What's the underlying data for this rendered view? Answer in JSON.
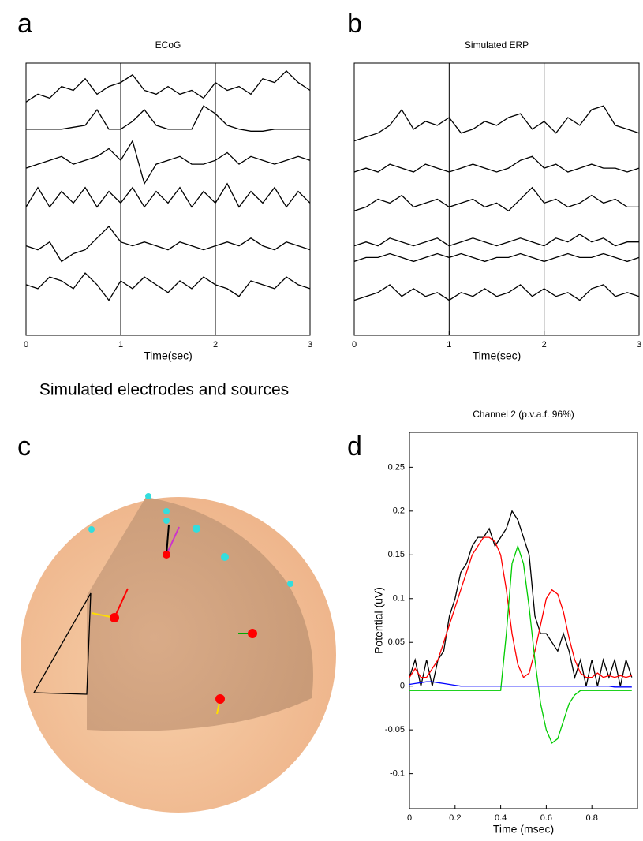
{
  "panel_labels": [
    "a",
    "b",
    "c",
    "d"
  ],
  "heading": "Simulated electrodes and sources",
  "chart_data": [
    {
      "type": "line",
      "title": "ECoG",
      "xlabel": "Time(sec)",
      "x": [
        0,
        0.125,
        0.25,
        0.375,
        0.5,
        0.625,
        0.75,
        0.875,
        1,
        1.125,
        1.25,
        1.375,
        1.5,
        1.625,
        1.75,
        1.875,
        2,
        2.125,
        2.25,
        2.375,
        2.5,
        2.625,
        2.75,
        2.875,
        3
      ],
      "xlim": [
        0,
        3
      ],
      "xticks": [
        0,
        1,
        2,
        3
      ],
      "ylim": [
        0,
        7
      ],
      "grid": true,
      "series": [
        {
          "color": "#000000",
          "values": [
            6.0,
            6.2,
            6.1,
            6.4,
            6.3,
            6.6,
            6.2,
            6.4,
            6.5,
            6.7,
            6.3,
            6.2,
            6.4,
            6.2,
            6.3,
            6.1,
            6.5,
            6.3,
            6.4,
            6.2,
            6.6,
            6.5,
            6.8,
            6.5,
            6.3
          ]
        },
        {
          "color": "#000000",
          "values": [
            5.3,
            5.3,
            5.3,
            5.3,
            5.35,
            5.4,
            5.8,
            5.3,
            5.3,
            5.5,
            5.8,
            5.4,
            5.3,
            5.3,
            5.3,
            5.9,
            5.7,
            5.4,
            5.3,
            5.25,
            5.25,
            5.3,
            5.3,
            5.3,
            5.3
          ]
        },
        {
          "color": "#000000",
          "values": [
            4.3,
            4.4,
            4.5,
            4.6,
            4.4,
            4.5,
            4.6,
            4.8,
            4.5,
            5.0,
            3.9,
            4.4,
            4.5,
            4.6,
            4.4,
            4.4,
            4.5,
            4.7,
            4.4,
            4.6,
            4.5,
            4.4,
            4.5,
            4.6,
            4.5
          ]
        },
        {
          "color": "#000000",
          "values": [
            3.3,
            3.8,
            3.3,
            3.7,
            3.4,
            3.8,
            3.3,
            3.7,
            3.4,
            3.8,
            3.3,
            3.7,
            3.4,
            3.8,
            3.3,
            3.7,
            3.4,
            3.9,
            3.3,
            3.7,
            3.4,
            3.8,
            3.3,
            3.7,
            3.4
          ]
        },
        {
          "color": "#000000",
          "values": [
            2.3,
            2.2,
            2.4,
            1.9,
            2.1,
            2.2,
            2.5,
            2.8,
            2.4,
            2.3,
            2.4,
            2.3,
            2.2,
            2.4,
            2.3,
            2.2,
            2.3,
            2.4,
            2.3,
            2.5,
            2.3,
            2.2,
            2.4,
            2.3,
            2.2
          ]
        },
        {
          "color": "#000000",
          "values": [
            1.3,
            1.2,
            1.5,
            1.4,
            1.2,
            1.6,
            1.3,
            0.9,
            1.4,
            1.2,
            1.5,
            1.3,
            1.1,
            1.4,
            1.2,
            1.5,
            1.3,
            1.2,
            1.0,
            1.4,
            1.3,
            1.2,
            1.5,
            1.3,
            1.2
          ]
        }
      ]
    },
    {
      "type": "line",
      "title": "Simulated ERP",
      "xlabel": "Time(sec)",
      "x": [
        0,
        0.125,
        0.25,
        0.375,
        0.5,
        0.625,
        0.75,
        0.875,
        1,
        1.125,
        1.25,
        1.375,
        1.5,
        1.625,
        1.75,
        1.875,
        2,
        2.125,
        2.25,
        2.375,
        2.5,
        2.625,
        2.75,
        2.875,
        3
      ],
      "xlim": [
        0,
        3
      ],
      "xticks": [
        0,
        1,
        2,
        3
      ],
      "ylim": [
        0,
        7
      ],
      "grid": true,
      "series": [
        {
          "color": "#000000",
          "values": [
            5.0,
            5.1,
            5.2,
            5.4,
            5.8,
            5.3,
            5.5,
            5.4,
            5.6,
            5.2,
            5.3,
            5.5,
            5.4,
            5.6,
            5.7,
            5.3,
            5.5,
            5.2,
            5.6,
            5.4,
            5.8,
            5.9,
            5.4,
            5.3,
            5.2
          ]
        },
        {
          "color": "#000000",
          "values": [
            4.2,
            4.3,
            4.2,
            4.4,
            4.3,
            4.2,
            4.4,
            4.3,
            4.2,
            4.3,
            4.4,
            4.3,
            4.2,
            4.3,
            4.5,
            4.6,
            4.3,
            4.4,
            4.2,
            4.3,
            4.4,
            4.3,
            4.3,
            4.2,
            4.3
          ]
        },
        {
          "color": "#000000",
          "values": [
            3.2,
            3.3,
            3.5,
            3.4,
            3.6,
            3.3,
            3.4,
            3.5,
            3.3,
            3.4,
            3.5,
            3.3,
            3.4,
            3.2,
            3.5,
            3.8,
            3.4,
            3.5,
            3.3,
            3.4,
            3.6,
            3.4,
            3.5,
            3.3,
            3.3
          ]
        },
        {
          "color": "#000000",
          "values": [
            2.3,
            2.4,
            2.3,
            2.5,
            2.4,
            2.3,
            2.4,
            2.5,
            2.3,
            2.4,
            2.5,
            2.4,
            2.3,
            2.4,
            2.5,
            2.4,
            2.3,
            2.5,
            2.4,
            2.6,
            2.4,
            2.5,
            2.3,
            2.4,
            2.4
          ]
        },
        {
          "color": "#000000",
          "values": [
            1.9,
            2.0,
            2.0,
            2.1,
            2.0,
            1.9,
            2.0,
            2.1,
            2.0,
            2.1,
            2.0,
            1.9,
            2.0,
            2.0,
            2.1,
            2.0,
            1.9,
            2.0,
            2.1,
            2.0,
            2.0,
            2.1,
            2.0,
            1.9,
            2.0
          ]
        },
        {
          "color": "#000000",
          "values": [
            0.9,
            1.0,
            1.1,
            1.3,
            1.0,
            1.2,
            1.0,
            1.1,
            0.9,
            1.1,
            1.0,
            1.2,
            1.0,
            1.1,
            1.3,
            1.0,
            1.2,
            1.0,
            1.1,
            0.9,
            1.2,
            1.3,
            1.0,
            1.1,
            1.0
          ]
        }
      ]
    },
    {
      "type": "line",
      "title": "Channel 2   (p.v.a.f. 96%)",
      "xlabel": "Time (msec)",
      "ylabel": "Potential (uV)",
      "x": [
        0,
        0.025,
        0.05,
        0.075,
        0.1,
        0.125,
        0.15,
        0.175,
        0.2,
        0.225,
        0.25,
        0.275,
        0.3,
        0.325,
        0.35,
        0.375,
        0.4,
        0.425,
        0.45,
        0.475,
        0.5,
        0.525,
        0.55,
        0.575,
        0.6,
        0.625,
        0.65,
        0.675,
        0.7,
        0.725,
        0.75,
        0.775,
        0.8,
        0.825,
        0.85,
        0.875,
        0.9,
        0.925,
        0.95,
        0.975
      ],
      "xlim": [
        0,
        1
      ],
      "xticks": [
        0,
        0.2,
        0.4,
        0.6,
        0.8
      ],
      "ylim": [
        -0.14,
        0.29
      ],
      "yticks": [
        -0.1,
        -0.05,
        0,
        0.05,
        0.1,
        0.15,
        0.2,
        0.25
      ],
      "grid": false,
      "series": [
        {
          "color": "#000000",
          "values": [
            0.01,
            0.03,
            0.0,
            0.03,
            0.0,
            0.03,
            0.04,
            0.08,
            0.1,
            0.13,
            0.14,
            0.16,
            0.17,
            0.17,
            0.18,
            0.16,
            0.17,
            0.18,
            0.2,
            0.19,
            0.17,
            0.15,
            0.08,
            0.06,
            0.06,
            0.05,
            0.04,
            0.06,
            0.04,
            0.01,
            0.03,
            0.0,
            0.03,
            0.0,
            0.03,
            0.01,
            0.03,
            0.0,
            0.03,
            0.01
          ]
        },
        {
          "color": "#ff0000",
          "values": [
            0.01,
            0.02,
            0.01,
            0.01,
            0.02,
            0.03,
            0.05,
            0.07,
            0.09,
            0.11,
            0.13,
            0.15,
            0.16,
            0.17,
            0.17,
            0.165,
            0.15,
            0.11,
            0.06,
            0.025,
            0.01,
            0.015,
            0.04,
            0.07,
            0.1,
            0.11,
            0.105,
            0.085,
            0.055,
            0.03,
            0.015,
            0.01,
            0.01,
            0.015,
            0.01,
            0.012,
            0.01,
            0.012,
            0.01,
            0.012
          ]
        },
        {
          "color": "#00cc00",
          "values": [
            -0.005,
            -0.005,
            -0.005,
            -0.005,
            -0.005,
            -0.005,
            -0.005,
            -0.005,
            -0.005,
            -0.005,
            -0.005,
            -0.005,
            -0.005,
            -0.005,
            -0.005,
            -0.005,
            -0.005,
            0.06,
            0.14,
            0.16,
            0.14,
            0.09,
            0.03,
            -0.02,
            -0.05,
            -0.065,
            -0.06,
            -0.04,
            -0.02,
            -0.01,
            -0.005,
            -0.005,
            -0.005,
            -0.005,
            -0.005,
            -0.005,
            -0.005,
            -0.005,
            -0.005,
            -0.005
          ]
        },
        {
          "color": "#0000ff",
          "values": [
            0.002,
            0.003,
            0.004,
            0.005,
            0.005,
            0.004,
            0.003,
            0.002,
            0.001,
            0,
            0,
            0,
            0,
            0,
            0,
            0,
            0,
            0,
            0,
            0,
            0,
            0,
            0,
            0,
            0,
            0,
            0,
            0,
            0,
            0,
            0,
            0,
            0,
            0,
            0,
            0,
            -0.001,
            -0.001,
            -0.001,
            -0.001
          ]
        }
      ]
    }
  ]
}
